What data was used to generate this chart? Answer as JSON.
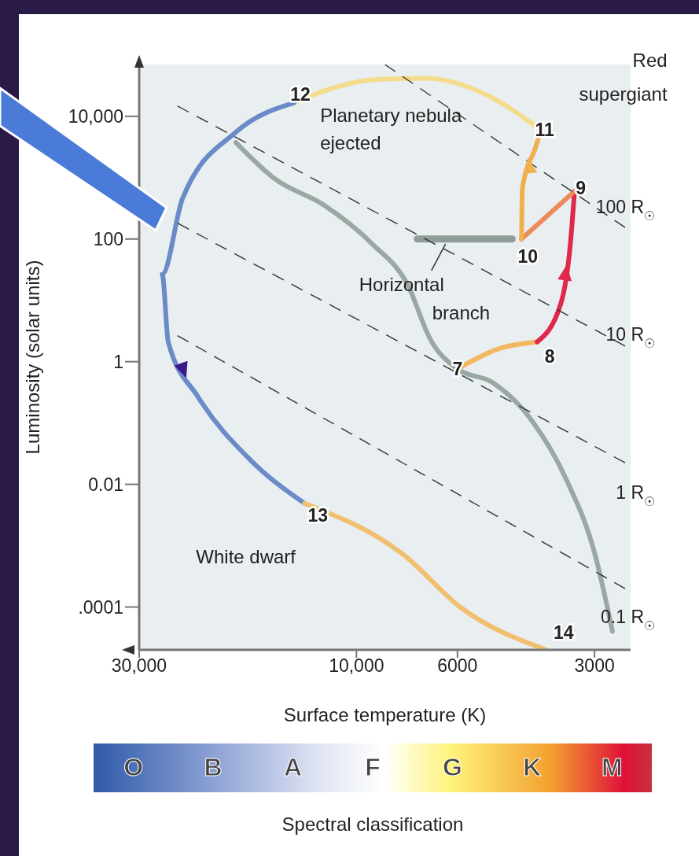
{
  "chart_data": {
    "type": "line",
    "xlabel": "Surface temperature (K)",
    "ylabel": "Luminosity (solar units)",
    "xlim": [
      30000,
      2500
    ],
    "xticks": [
      {
        "value": 30000,
        "label": "30,000"
      },
      {
        "value": 10000,
        "label": "10,000"
      },
      6000,
      3000
    ],
    "ylim": [
      2e-05,
      70000
    ],
    "yticks": [
      {
        "value": 10000,
        "label": "10,000"
      },
      100,
      1,
      0.01,
      {
        "value": 0.0001,
        "label": ".0001"
      }
    ],
    "log": "xy",
    "grid": false,
    "marker": "none",
    "series": [
      {
        "color": "#9aa8a4",
        "line_style": "solid",
        "x": [
          18400,
          15100,
          11800,
          9230,
          7690,
          6900,
          6000,
          5030,
          4120,
          3460,
          2990,
          2740
        ],
        "values": [
          3750,
          955,
          359,
          83,
          17,
          2.4,
          0.76,
          0.46,
          0.11,
          0.012,
          0.0007,
          4e-05
        ]
      },
      {
        "color": "#8f9c98",
        "line_style": "solid",
        "x": [
          7350,
          4550
        ],
        "values": [
          100,
          100
        ]
      },
      {
        "color": "#f2b860",
        "line_style": "solid",
        "x": [
          6000,
          4900,
          4010
        ],
        "values": [
          0.76,
          1.6,
          2.1
        ]
      },
      {
        "color": "#e0284a",
        "line_style": "solid",
        "x": [
          4010,
          3560,
          3390,
          3320
        ],
        "values": [
          2.1,
          8.7,
          83,
          600
        ]
      },
      {
        "color": "#ee8a5a",
        "line_style": "solid",
        "x": [
          3320,
          4340
        ],
        "values": [
          600,
          100
        ]
      },
      {
        "color": "#f0b050",
        "line_style": "solid",
        "x": [
          4340,
          4320,
          4030,
          3940
        ],
        "values": [
          100,
          670,
          3330,
          6000
        ]
      },
      {
        "color": "#f5dc8c",
        "line_style": "solid",
        "x": [
          3940,
          5130,
          7030,
          9230,
          11500,
          13700
        ],
        "values": [
          6000,
          21600,
          41600,
          39300,
          27500,
          16600
        ]
      },
      {
        "color": "#6a8ac8",
        "line_style": "solid",
        "x": [
          13700,
          18400,
          24100,
          26700,
          25900,
          22300,
          17100,
          13000
        ],
        "values": [
          16600,
          5520,
          455,
          26.5,
          2.1,
          0.27,
          0.025,
          0.0049
        ]
      },
      {
        "color": "#f0c070",
        "line_style": "solid",
        "x": [
          13000,
          7860,
          5920,
          3830
        ],
        "values": [
          0.0049,
          0.0007,
          0.0001,
          2e-05
        ]
      },
      {
        "name": "100 R$_{☉}$",
        "color": "#333333",
        "line_style": "dashed",
        "x": [
          8660,
          2570
        ],
        "values": [
          70000,
          154
        ]
      },
      {
        "name": "10 R$_{☉}$",
        "color": "#333333",
        "line_style": "dashed",
        "x": [
          24700,
          2570
        ],
        "values": [
          14700,
          1.8
        ]
      },
      {
        "name": "1 R$_{☉}$",
        "color": "#333333",
        "line_style": "dashed",
        "x": [
          24700,
          2570
        ],
        "values": [
          181,
          0.0225
        ]
      },
      {
        "name": "0.1 R$_{☉}$",
        "color": "#333333",
        "line_style": "dashed",
        "x": [
          24700,
          2570
        ],
        "values": [
          2.65,
          0.0002
        ]
      }
    ],
    "annotations": [
      {
        "text": "Red supergiant",
        "x": 3940,
        "y": 6000
      },
      {
        "text": "Planetary nebula ejected",
        "x": 13700,
        "y": 16600
      },
      {
        "text": "Horizontal branch",
        "x": 6370,
        "y": 100
      },
      {
        "text": "White dwarf",
        "x": 13000,
        "y": 0.0049
      },
      {
        "text": "7",
        "x": 6000,
        "y": 0.76
      },
      {
        "text": "8",
        "x": 4010,
        "y": 2.1
      },
      {
        "text": "9",
        "x": 3320,
        "y": 600
      },
      {
        "text": "10",
        "x": 4340,
        "y": 100
      },
      {
        "text": "11",
        "x": 3940,
        "y": 6000
      },
      {
        "text": "12",
        "x": 13700,
        "y": 16600
      },
      {
        "text": "13",
        "x": 13000,
        "y": 0.0049
      },
      {
        "text": "14",
        "x": 3830,
        "y": 2e-05
      },
      "O",
      "B",
      "A",
      "F",
      "G",
      "K",
      "M",
      "Spectral classification"
    ]
  }
}
